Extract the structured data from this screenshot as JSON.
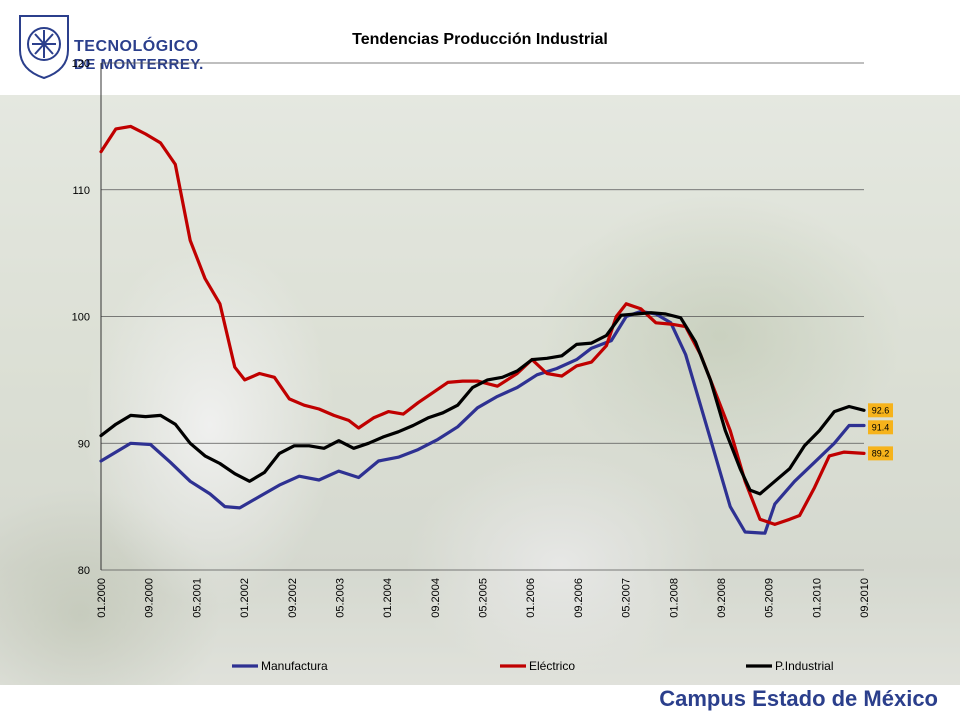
{
  "logo": {
    "line1": "TECNOLÓGICO",
    "line2": "DE MONTERREY."
  },
  "footer": "Campus Estado de México",
  "chart_data": {
    "type": "line",
    "title": "Tendencias Producción Industrial",
    "xlabel": "",
    "ylabel": "",
    "ylim": [
      80,
      120
    ],
    "yticks": [
      80,
      90,
      100,
      110,
      120
    ],
    "grid": true,
    "legend_position": "bottom",
    "x_tick_labels": [
      "01.2000",
      "09.2000",
      "05.2001",
      "01.2002",
      "09.2002",
      "05.2003",
      "01.2004",
      "09.2004",
      "05.2005",
      "01.2006",
      "09.2006",
      "05.2007",
      "01.2008",
      "09.2008",
      "05.2009",
      "01.2010",
      "09.2010"
    ],
    "period_count": 129,
    "series": [
      {
        "name": "Manufactura",
        "color": "#2e3192",
        "end_label": "91.4",
        "points": [
          [
            0,
            88.6
          ],
          [
            6,
            90.0
          ],
          [
            10,
            89.9
          ],
          [
            14,
            88.5
          ],
          [
            18,
            87.0
          ],
          [
            22,
            86.0
          ],
          [
            25,
            85.0
          ],
          [
            28,
            84.9
          ],
          [
            32,
            85.8
          ],
          [
            36,
            86.7
          ],
          [
            40,
            87.4
          ],
          [
            44,
            87.1
          ],
          [
            48,
            87.8
          ],
          [
            52,
            87.3
          ],
          [
            56,
            88.6
          ],
          [
            60,
            88.9
          ],
          [
            64,
            89.5
          ],
          [
            68,
            90.3
          ],
          [
            72,
            91.3
          ],
          [
            76,
            92.8
          ],
          [
            80,
            93.7
          ],
          [
            84,
            94.4
          ],
          [
            88,
            95.4
          ],
          [
            92,
            95.9
          ],
          [
            96,
            96.6
          ],
          [
            99,
            97.5
          ],
          [
            103,
            98.1
          ],
          [
            106,
            100.0
          ],
          [
            109,
            100.4
          ],
          [
            112,
            100.2
          ],
          [
            115,
            99.5
          ],
          [
            118,
            97.0
          ],
          [
            121,
            93.0
          ],
          [
            124,
            89.0
          ],
          [
            127,
            85.0
          ],
          [
            130,
            83.0
          ],
          [
            134,
            82.9
          ],
          [
            136,
            85.2
          ],
          [
            140,
            87.0
          ],
          [
            144,
            88.5
          ],
          [
            148,
            90.0
          ],
          [
            151,
            91.4
          ],
          [
            154,
            91.4
          ]
        ]
      },
      {
        "name": "Eléctrico",
        "color": "#c00000",
        "end_label": "89.2",
        "points": [
          [
            0,
            113.0
          ],
          [
            3,
            114.8
          ],
          [
            6,
            115.0
          ],
          [
            9,
            114.4
          ],
          [
            12,
            113.7
          ],
          [
            15,
            112.0
          ],
          [
            18,
            106.0
          ],
          [
            21,
            103.0
          ],
          [
            24,
            101.0
          ],
          [
            27,
            96.0
          ],
          [
            29,
            95.0
          ],
          [
            32,
            95.5
          ],
          [
            35,
            95.2
          ],
          [
            38,
            93.5
          ],
          [
            41,
            93.0
          ],
          [
            44,
            92.7
          ],
          [
            47,
            92.2
          ],
          [
            50,
            91.8
          ],
          [
            52,
            91.2
          ],
          [
            55,
            92.0
          ],
          [
            58,
            92.5
          ],
          [
            61,
            92.3
          ],
          [
            64,
            93.2
          ],
          [
            67,
            94.0
          ],
          [
            70,
            94.8
          ],
          [
            73,
            94.9
          ],
          [
            76,
            94.9
          ],
          [
            80,
            94.5
          ],
          [
            84,
            95.5
          ],
          [
            87,
            96.6
          ],
          [
            90,
            95.5
          ],
          [
            93,
            95.3
          ],
          [
            96,
            96.1
          ],
          [
            99,
            96.4
          ],
          [
            102,
            97.7
          ],
          [
            104,
            100.0
          ],
          [
            106,
            101.0
          ],
          [
            109,
            100.6
          ],
          [
            112,
            99.5
          ],
          [
            115,
            99.4
          ],
          [
            118,
            99.2
          ],
          [
            121,
            97.0
          ],
          [
            124,
            94.0
          ],
          [
            127,
            91.0
          ],
          [
            130,
            87.0
          ],
          [
            133,
            84.0
          ],
          [
            136,
            83.6
          ],
          [
            139,
            84.0
          ],
          [
            141,
            84.3
          ],
          [
            144,
            86.5
          ],
          [
            147,
            89.0
          ],
          [
            150,
            89.3
          ],
          [
            154,
            89.2
          ]
        ]
      },
      {
        "name": "P.Industrial",
        "color": "#000000",
        "end_label": "92.6",
        "points": [
          [
            0,
            90.6
          ],
          [
            3,
            91.5
          ],
          [
            6,
            92.2
          ],
          [
            9,
            92.1
          ],
          [
            12,
            92.2
          ],
          [
            15,
            91.5
          ],
          [
            18,
            90.0
          ],
          [
            21,
            89.0
          ],
          [
            24,
            88.4
          ],
          [
            27,
            87.6
          ],
          [
            30,
            87.0
          ],
          [
            33,
            87.7
          ],
          [
            36,
            89.2
          ],
          [
            39,
            89.8
          ],
          [
            42,
            89.8
          ],
          [
            45,
            89.6
          ],
          [
            48,
            90.2
          ],
          [
            51,
            89.6
          ],
          [
            54,
            90.0
          ],
          [
            57,
            90.5
          ],
          [
            60,
            90.9
          ],
          [
            63,
            91.4
          ],
          [
            66,
            92.0
          ],
          [
            69,
            92.4
          ],
          [
            72,
            93.0
          ],
          [
            75,
            94.4
          ],
          [
            78,
            95.0
          ],
          [
            81,
            95.2
          ],
          [
            84,
            95.7
          ],
          [
            87,
            96.6
          ],
          [
            90,
            96.7
          ],
          [
            93,
            96.9
          ],
          [
            96,
            97.8
          ],
          [
            99,
            97.9
          ],
          [
            102,
            98.5
          ],
          [
            105,
            100.1
          ],
          [
            108,
            100.2
          ],
          [
            111,
            100.3
          ],
          [
            114,
            100.2
          ],
          [
            117,
            99.9
          ],
          [
            120,
            98.0
          ],
          [
            123,
            95.0
          ],
          [
            126,
            91.0
          ],
          [
            129,
            88.0
          ],
          [
            131,
            86.3
          ],
          [
            133,
            86.0
          ],
          [
            136,
            87.0
          ],
          [
            139,
            88.0
          ],
          [
            142,
            89.8
          ],
          [
            145,
            91.0
          ],
          [
            148,
            92.5
          ],
          [
            151,
            92.9
          ],
          [
            154,
            92.6
          ]
        ]
      }
    ]
  }
}
